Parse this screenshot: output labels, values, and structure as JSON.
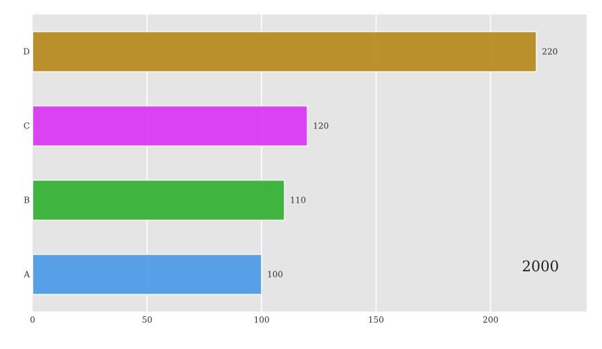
{
  "chart_data": {
    "type": "bar",
    "orientation": "horizontal",
    "categories": [
      "A",
      "B",
      "C",
      "D"
    ],
    "values": [
      100,
      110,
      120,
      220
    ],
    "colors": [
      "#4c9be8",
      "#33b233",
      "#d936f5",
      "#b8891e"
    ],
    "background": "#e5e5e5",
    "xlim": [
      0,
      242
    ],
    "xticks": [
      0,
      50,
      100,
      150,
      200
    ],
    "grid": "vertical",
    "annotation": "2000"
  }
}
